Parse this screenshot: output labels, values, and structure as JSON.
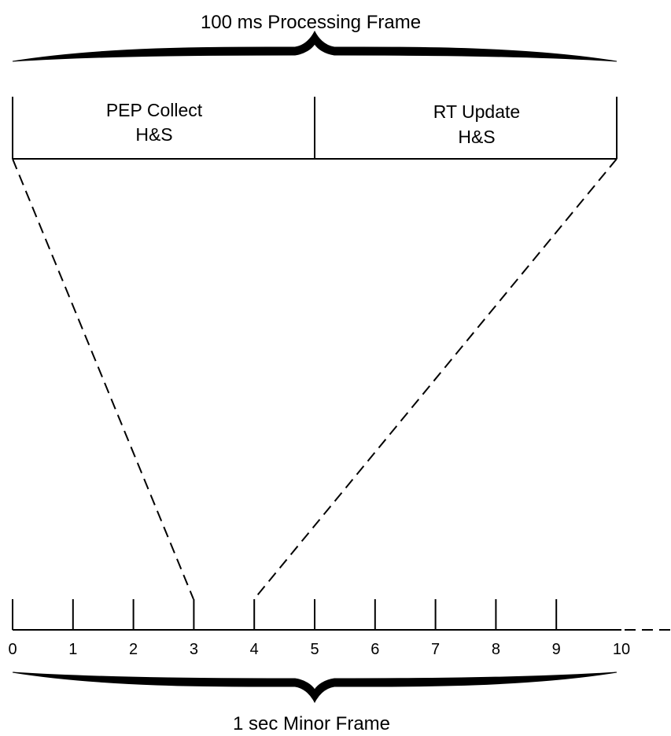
{
  "top_caption": "100 ms Processing Frame",
  "bottom_caption": "1 sec Minor Frame",
  "frame_boxes": [
    {
      "line1": "PEP Collect",
      "line2": "H&S"
    },
    {
      "line1": "RT Update",
      "line2": "H&S"
    }
  ],
  "ticks": [
    "0",
    "1",
    "2",
    "3",
    "4",
    "5",
    "6",
    "7",
    "8",
    "9",
    "10"
  ]
}
